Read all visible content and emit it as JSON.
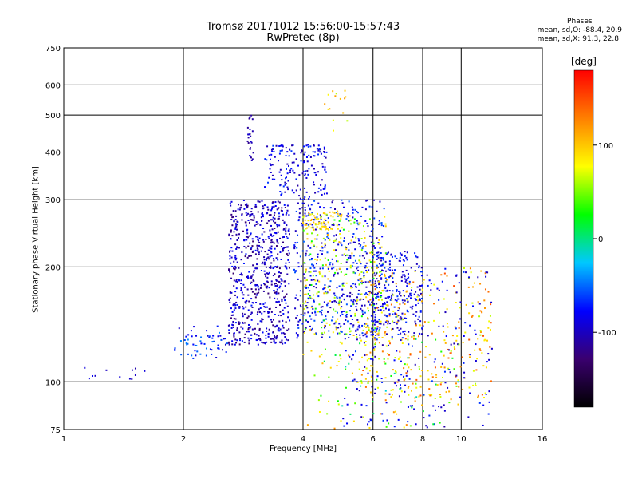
{
  "chart_data": {
    "type": "scatter",
    "title": "Tromsø 20171012 15:56:00-15:57:43",
    "subtitle": "RwPretec (8p)",
    "xlabel": "Frequency [MHz]",
    "ylabel": "Stationary phase Virtual Height [km]",
    "x_scale": "log",
    "y_scale": "log",
    "xlim": [
      1,
      16
    ],
    "ylim": [
      75,
      750
    ],
    "x_ticks": [
      1,
      2,
      4,
      6,
      8,
      10,
      16
    ],
    "y_ticks": [
      75,
      100,
      200,
      300,
      400,
      500,
      600,
      750
    ],
    "grid": true,
    "stats": {
      "heading": "Phases",
      "line_o": "mean, sd,O: -88.4, 20.9",
      "line_x": "mean, sd,X:  91.3, 22.8"
    },
    "colorbar": {
      "unit": "[deg]",
      "range": [
        -180,
        180
      ],
      "ticks": [
        100,
        0,
        -100
      ],
      "colors": [
        "#000000",
        "#3a006f",
        "#0000ff",
        "#00c8ff",
        "#00ff00",
        "#ffff00",
        "#ff8000",
        "#ff0000"
      ]
    },
    "clusters": [
      {
        "f": [
          1.05,
          1.6
        ],
        "h": [
          100,
          110
        ],
        "phase": [
          -110,
          -80
        ],
        "n": 12
      },
      {
        "f": [
          1.9,
          2.6
        ],
        "h": [
          115,
          140
        ],
        "phase": [
          -100,
          -40
        ],
        "n": 60
      },
      {
        "f": [
          2.6,
          3.7
        ],
        "h": [
          125,
          300
        ],
        "phase": [
          -130,
          -70
        ],
        "n": 700
      },
      {
        "f": [
          3.2,
          4.6
        ],
        "h": [
          300,
          420
        ],
        "phase": [
          -110,
          -60
        ],
        "n": 170
      },
      {
        "f": [
          2.9,
          3.0
        ],
        "h": [
          380,
          500
        ],
        "phase": [
          -120,
          -90
        ],
        "n": 25
      },
      {
        "f": [
          3.8,
          6.4
        ],
        "h": [
          130,
          300
        ],
        "phase": [
          -110,
          -50
        ],
        "n": 500
      },
      {
        "f": [
          4.0,
          6.5
        ],
        "h": [
          130,
          280
        ],
        "phase": [
          20,
          110
        ],
        "n": 250
      },
      {
        "f": [
          6.0,
          8.0
        ],
        "h": [
          130,
          220
        ],
        "phase": [
          -110,
          -60
        ],
        "n": 230
      },
      {
        "f": [
          5.5,
          12.0
        ],
        "h": [
          90,
          200
        ],
        "phase": [
          60,
          150
        ],
        "n": 280
      },
      {
        "f": [
          5.0,
          12.0
        ],
        "h": [
          75,
          200
        ],
        "phase": [
          -110,
          -60
        ],
        "n": 220
      },
      {
        "f": [
          4.0,
          10.0
        ],
        "h": [
          75,
          130
        ],
        "phase": [
          -20,
          130
        ],
        "n": 120
      },
      {
        "f": [
          4.5,
          5.2
        ],
        "h": [
          450,
          580
        ],
        "phase": [
          60,
          120
        ],
        "n": 15
      },
      {
        "f": [
          4.0,
          5.0
        ],
        "h": [
          250,
          280
        ],
        "phase": [
          80,
          110
        ],
        "n": 60
      }
    ]
  }
}
